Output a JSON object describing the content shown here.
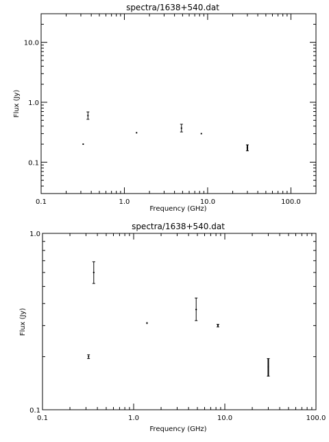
{
  "chart_data": [
    {
      "type": "scatter",
      "title": "spectra/1638+540.dat",
      "xlabel": "Frequency (GHz)",
      "ylabel": "Flux (Jy)",
      "x_scale": "log",
      "y_scale": "log",
      "xlim": [
        0.1,
        200
      ],
      "ylim": [
        0.03,
        30
      ],
      "x_ticks": [
        {
          "value": 0.1,
          "label": "0.1"
        },
        {
          "value": 1,
          "label": "1.0"
        },
        {
          "value": 10,
          "label": "10.0"
        },
        {
          "value": 100,
          "label": "100.0"
        }
      ],
      "y_ticks": [
        {
          "value": 0.1,
          "label": "0.1"
        },
        {
          "value": 1,
          "label": "1.0"
        },
        {
          "value": 10,
          "label": "10.0"
        }
      ],
      "grid": false,
      "points": [
        {
          "x": 0.32,
          "y": 0.2,
          "err_low": 0.005,
          "err_high": 0.005
        },
        {
          "x": 0.365,
          "y": 0.6,
          "err_low": 0.08,
          "err_high": 0.09
        },
        {
          "x": 1.4,
          "y": 0.31,
          "err_low": 0.004,
          "err_high": 0.004
        },
        {
          "x": 4.85,
          "y": 0.37,
          "err_low": 0.05,
          "err_high": 0.06
        },
        {
          "x": 8.4,
          "y": 0.3,
          "err_low": 0.005,
          "err_high": 0.005
        },
        {
          "x": 30,
          "y": 0.175,
          "err_low": 0.02,
          "err_high": 0.02
        }
      ]
    },
    {
      "type": "scatter",
      "title": "spectra/1638+540.dat",
      "xlabel": "Frequency (GHz)",
      "ylabel": "Flux (Jy)",
      "x_scale": "log",
      "y_scale": "log",
      "xlim": [
        0.1,
        100
      ],
      "ylim": [
        0.1,
        1
      ],
      "x_ticks": [
        {
          "value": 0.1,
          "label": "0.1"
        },
        {
          "value": 1,
          "label": "1.0"
        },
        {
          "value": 10,
          "label": "10.0"
        },
        {
          "value": 100,
          "label": "100.0"
        }
      ],
      "y_ticks": [
        {
          "value": 0.1,
          "label": "0.1"
        },
        {
          "value": 1,
          "label": "1.0"
        }
      ],
      "grid": false,
      "points": [
        {
          "x": 0.32,
          "y": 0.2,
          "err_low": 0.005,
          "err_high": 0.005
        },
        {
          "x": 0.365,
          "y": 0.6,
          "err_low": 0.08,
          "err_high": 0.09
        },
        {
          "x": 1.4,
          "y": 0.31,
          "err_low": 0.004,
          "err_high": 0.004
        },
        {
          "x": 4.85,
          "y": 0.37,
          "err_low": 0.05,
          "err_high": 0.06
        },
        {
          "x": 8.4,
          "y": 0.3,
          "err_low": 0.005,
          "err_high": 0.005
        },
        {
          "x": 30,
          "y": 0.175,
          "err_low": 0.02,
          "err_high": 0.02
        }
      ]
    }
  ]
}
